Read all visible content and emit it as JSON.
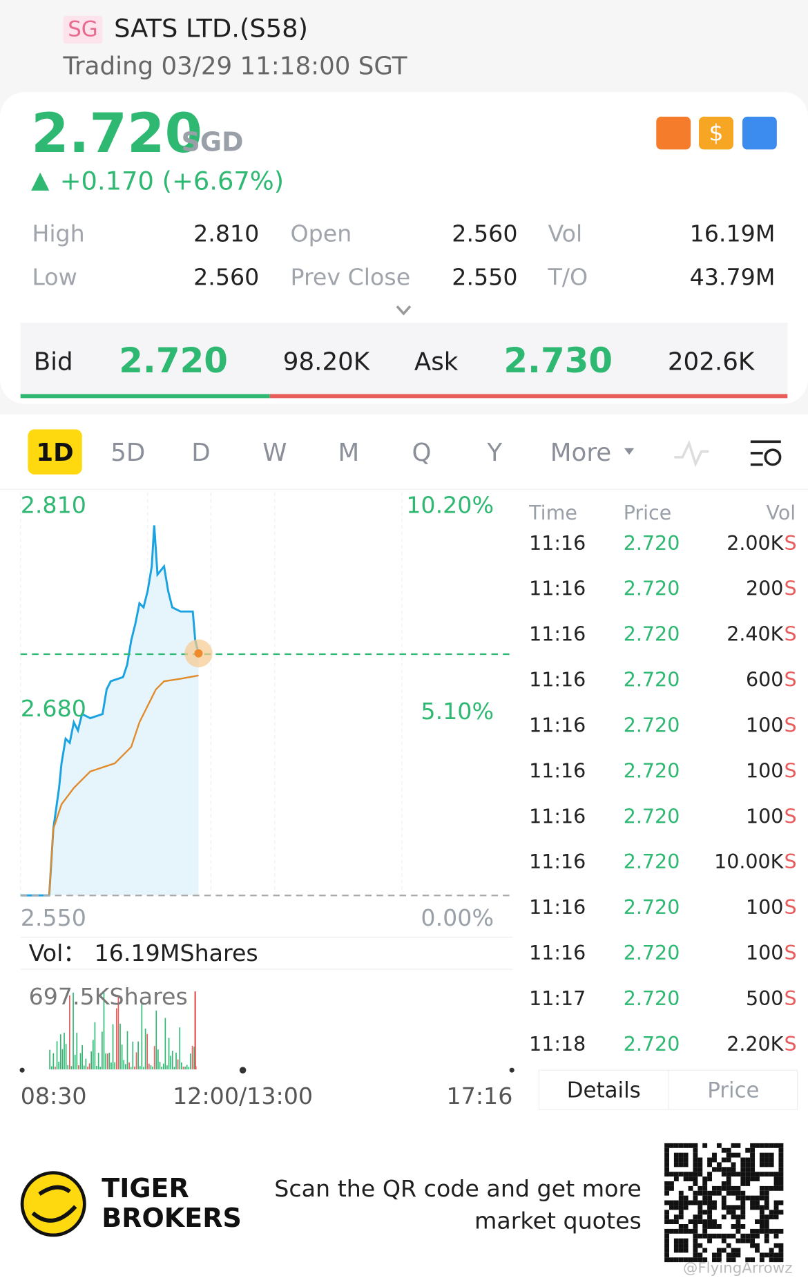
{
  "header": {
    "market": "SG",
    "name": "SATS LTD.(S58)",
    "status": "Trading 03/29 11:18:00 SGT"
  },
  "quote": {
    "price": "2.720",
    "currency": "SGD",
    "change": "+0.170 (+6.67%)"
  },
  "stats": [
    [
      "High",
      "2.810"
    ],
    [
      "Open",
      "2.560"
    ],
    [
      "Vol",
      "16.19M"
    ],
    [
      "Low",
      "2.560"
    ],
    [
      "Prev Close",
      "2.550"
    ],
    [
      "T/O",
      "43.79M"
    ]
  ],
  "bid": {
    "label": "Bid",
    "price": "2.720",
    "size": "98.20K"
  },
  "ask": {
    "label": "Ask",
    "price": "2.730",
    "size": "202.6K"
  },
  "tabs": [
    "1D",
    "5D",
    "D",
    "W",
    "M",
    "Q",
    "Y",
    "More"
  ],
  "chart": {
    "price_labels": [
      "2.810",
      "2.680",
      "2.550"
    ],
    "pct_labels": [
      "10.20%",
      "5.10%",
      "0.00%"
    ],
    "vol_label": "Vol：",
    "vol": "16.19MShares",
    "vol_max": "697.5KShares",
    "time_labels": [
      "08:30",
      "12:00/13:00",
      "17:16"
    ]
  },
  "trades": {
    "header": [
      "Time",
      "Price",
      "Vol"
    ],
    "rows": [
      [
        "11:16",
        "2.720",
        "2.00K",
        "S"
      ],
      [
        "11:16",
        "2.720",
        "200",
        "S"
      ],
      [
        "11:16",
        "2.720",
        "2.40K",
        "S"
      ],
      [
        "11:16",
        "2.720",
        "600",
        "S"
      ],
      [
        "11:16",
        "2.720",
        "100",
        "S"
      ],
      [
        "11:16",
        "2.720",
        "100",
        "S"
      ],
      [
        "11:16",
        "2.720",
        "100",
        "S"
      ],
      [
        "11:16",
        "2.720",
        "10.00K",
        "S"
      ],
      [
        "11:16",
        "2.720",
        "100",
        "S"
      ],
      [
        "11:16",
        "2.720",
        "100",
        "S"
      ],
      [
        "11:17",
        "2.720",
        "500",
        "S"
      ],
      [
        "11:18",
        "2.720",
        "2.20K",
        "S"
      ]
    ]
  },
  "buttons": [
    "Details",
    "Price"
  ],
  "footer": {
    "brand": [
      "TIGER",
      "BROKERS"
    ],
    "scan": [
      "Scan the QR code and get more",
      "market quotes"
    ],
    "watermark": "@FlyingArrowz"
  }
}
